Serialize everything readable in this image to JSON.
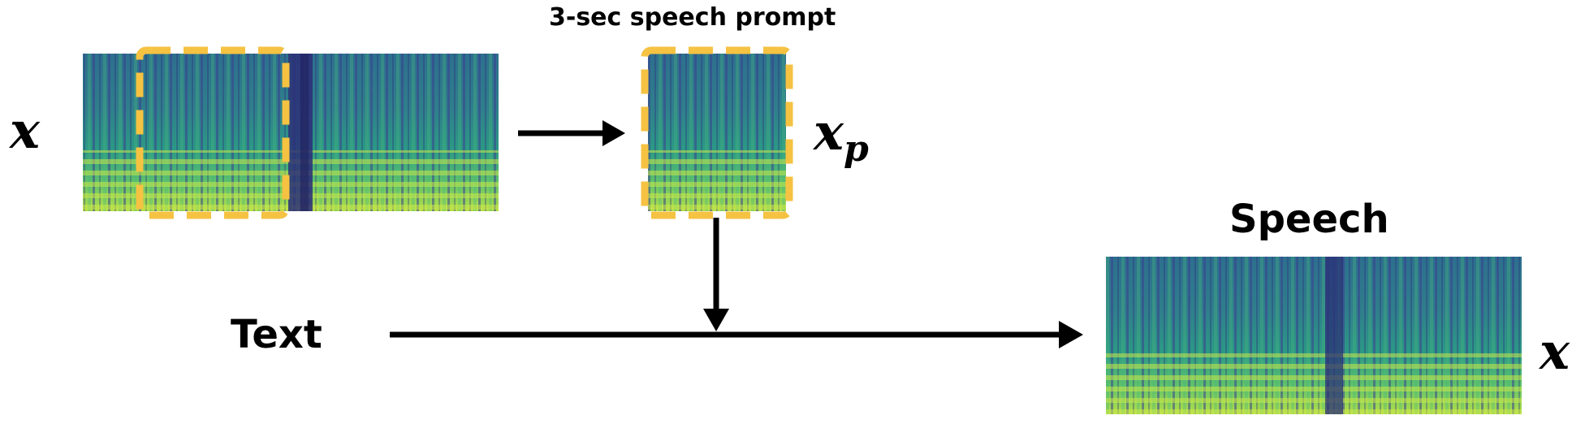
{
  "labels": {
    "input_symbol": "x",
    "prompt_title": "3-sec speech prompt",
    "prompt_symbol": "x",
    "prompt_subscript": "p",
    "text_label": "Text",
    "output_title": "Speech",
    "output_symbol": "x"
  },
  "colors": {
    "background": "#ffffff",
    "arrow": "#000000",
    "dashed_box": "#F5C242",
    "spectrogram_low": "#3b2a7a",
    "spectrogram_mid": "#2a8a8a",
    "spectrogram_high": "#b6de4a"
  }
}
